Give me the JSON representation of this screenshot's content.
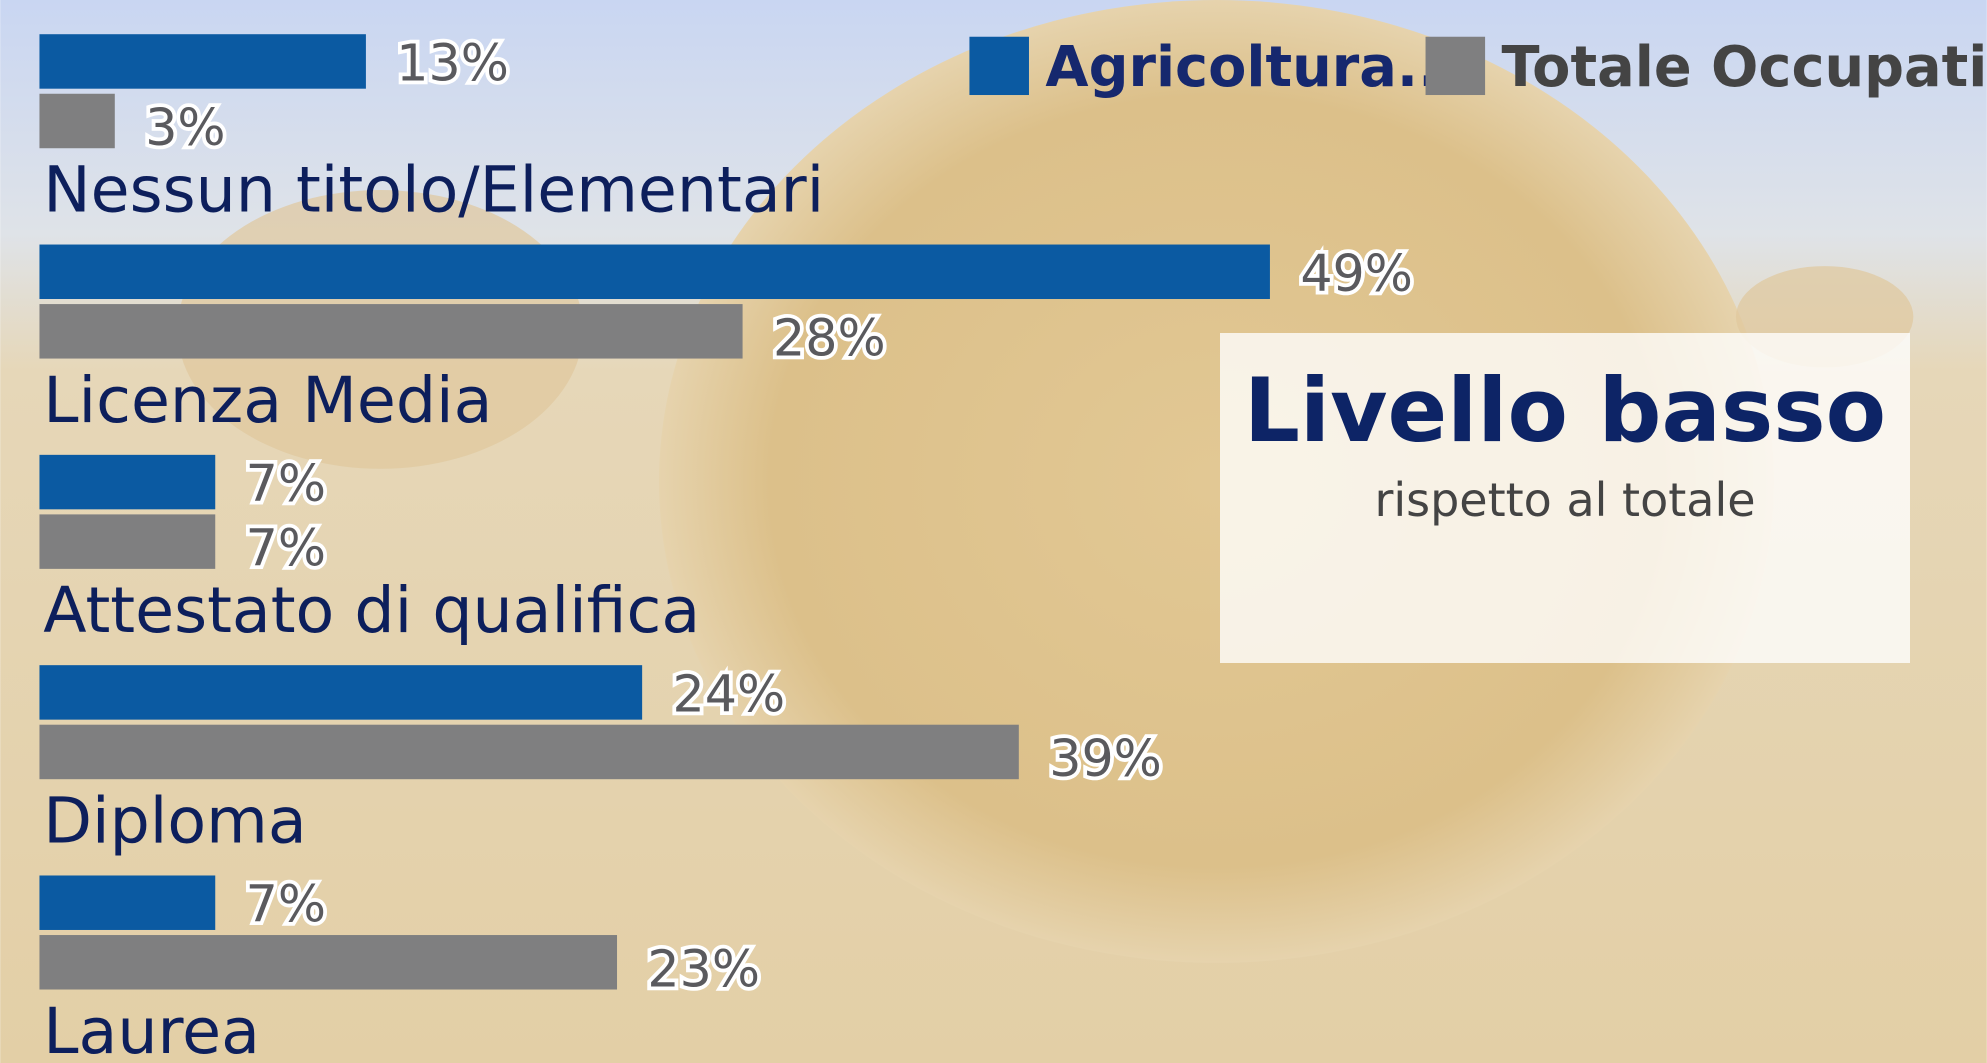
{
  "chart_data": {
    "type": "bar",
    "orientation": "horizontal",
    "categories": [
      "Nessun titolo/Elementari",
      "Licenza Media",
      "Attestato di qualifica",
      "Diploma",
      "Laurea"
    ],
    "series": [
      {
        "name": "Agricoltura..",
        "color": "#0b5aa2",
        "values": [
          13,
          49,
          7,
          24,
          7
        ],
        "value_labels": [
          "13%",
          "49%",
          "7%",
          "24%",
          "7%"
        ]
      },
      {
        "name": "Totale Occupati",
        "color": "#7f7f80",
        "values": [
          3,
          28,
          7,
          39,
          23
        ],
        "value_labels": [
          "3%",
          "28%",
          "7%",
          "39%",
          "23%"
        ]
      }
    ],
    "legend": "top-right",
    "annotation": {
      "title": "Livello basso",
      "subtitle": "rispetto al totale"
    }
  }
}
